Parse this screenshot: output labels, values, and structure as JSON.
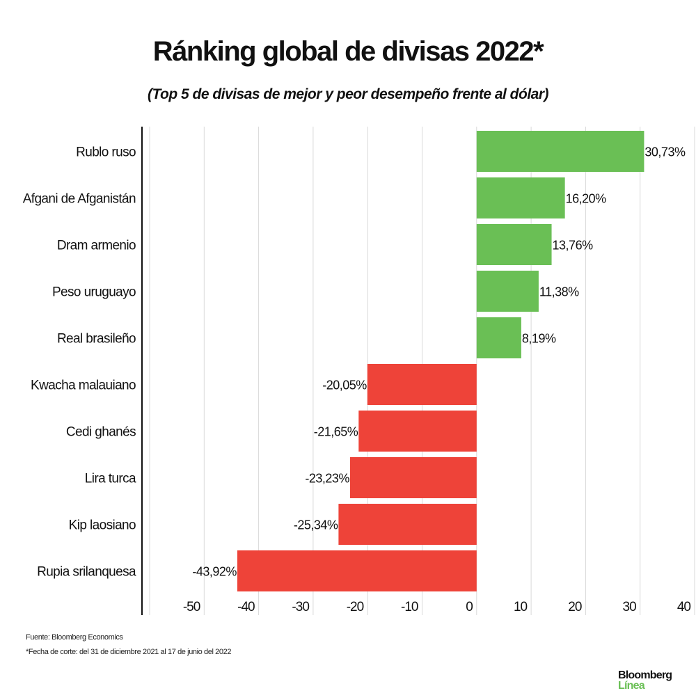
{
  "chart_data": {
    "type": "bar",
    "orientation": "horizontal",
    "title": "Ránking global de divisas 2022*",
    "subtitle": "(Top 5 de divisas de mejor y peor desempeño frente al dólar)",
    "categories": [
      "Rublo ruso",
      "Afgani de Afganistán",
      "Dram armenio",
      "Peso uruguayo",
      "Real brasileño",
      "Kwacha malauiano",
      "Cedi ghanés",
      "Lira turca",
      "Kip laosiano",
      "Rupia srilanquesa"
    ],
    "values": [
      30.73,
      16.2,
      13.76,
      11.38,
      8.19,
      -20.05,
      -21.65,
      -23.23,
      -25.34,
      -43.92
    ],
    "data_labels": [
      "30,73%",
      "16,20%",
      "13,76%",
      "11,38%",
      "8,19%",
      "-20,05%",
      "-21,65%",
      "-23,23%",
      "-25,34%",
      "-43,92%"
    ],
    "xlim": [
      -60,
      40
    ],
    "xticks": [
      -50,
      -40,
      -30,
      -20,
      -10,
      0,
      10,
      20,
      30,
      40
    ],
    "grid": true,
    "colors": {
      "positive": "#6abf55",
      "negative": "#ee4339"
    }
  },
  "footer": {
    "source": "Fuente: Bloomberg Economics",
    "note": "*Fecha de corte: del 31 de diciembre 2021 al 17 de junio del 2022"
  },
  "logo": {
    "line1": "Bloomberg",
    "line2": "Línea"
  }
}
